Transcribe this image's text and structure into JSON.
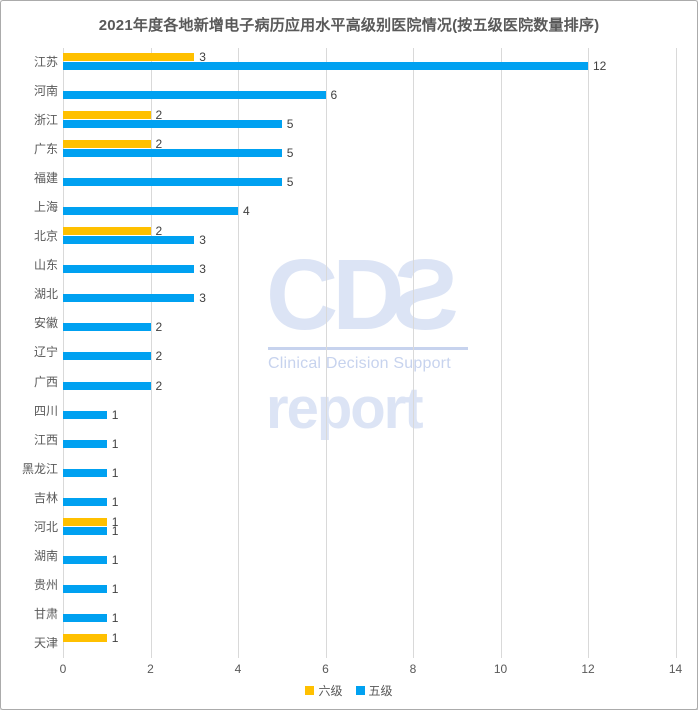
{
  "title": "2021年度各地新增电子病历应用水平高级别医院情况(按五级医院数量排序)",
  "watermark": {
    "logo": "CDS",
    "subtitle": "Clinical Decision Support",
    "caption": "report"
  },
  "colors": {
    "grade6": "#FFC000",
    "grade5": "#00A1F1",
    "gridline": "#d9d9d9",
    "label_gray": "#595959",
    "value_gray": "#404040",
    "watermark_blue": "#dce4f5"
  },
  "chart_data": {
    "type": "bar",
    "orientation": "horizontal",
    "title": "2021年度各地新增电子病历应用水平高级别医院情况(按五级医院数量排序)",
    "categories": [
      "江苏",
      "河南",
      "浙江",
      "广东",
      "福建",
      "上海",
      "北京",
      "山东",
      "湖北",
      "安徽",
      "辽宁",
      "广西",
      "四川",
      "江西",
      "黑龙江",
      "吉林",
      "河北",
      "湖南",
      "贵州",
      "甘肃",
      "天津"
    ],
    "series": [
      {
        "name": "六级",
        "color": "#FFC000",
        "values": [
          3,
          0,
          2,
          2,
          0,
          0,
          2,
          0,
          0,
          0,
          0,
          0,
          0,
          0,
          0,
          0,
          1,
          0,
          0,
          0,
          1
        ]
      },
      {
        "name": "五级",
        "color": "#00A1F1",
        "values": [
          12,
          6,
          5,
          5,
          5,
          4,
          3,
          3,
          3,
          2,
          2,
          2,
          1,
          1,
          1,
          1,
          1,
          1,
          1,
          1,
          0
        ]
      }
    ],
    "xlim": [
      0,
      14
    ],
    "x_ticks": [
      0,
      2,
      4,
      6,
      8,
      10,
      12,
      14
    ],
    "grid": true,
    "legend_position": "bottom",
    "data_labels": true
  }
}
